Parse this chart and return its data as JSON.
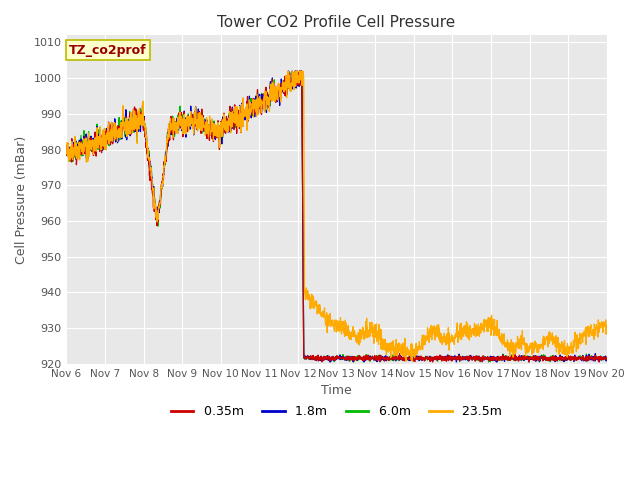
{
  "title": "Tower CO2 Profile Cell Pressure",
  "xlabel": "Time",
  "ylabel": "Cell Pressure (mBar)",
  "ylim": [
    920,
    1012
  ],
  "yticks": [
    920,
    930,
    940,
    950,
    960,
    970,
    980,
    990,
    1000,
    1010
  ],
  "annotation_text": "TZ_co2prof",
  "annotation_box_color": "#ffffcc",
  "annotation_box_edgecolor": "#bbbb00",
  "annotation_text_color": "#990000",
  "fig_bg_color": "#ffffff",
  "plot_bg_color": "#e8e8e8",
  "line_colors": {
    "0.35m": "#cc0000",
    "1.8m": "#0000cc",
    "6.0m": "#00bb00",
    "23.5m": "#ffaa00"
  },
  "x_tick_labels": [
    "Nov 6",
    "Nov 7",
    "Nov 8",
    "Nov 9",
    "Nov 10",
    "Nov 11",
    "Nov 12",
    "Nov 13",
    "Nov 14",
    "Nov 15",
    "Nov 16",
    "Nov 17",
    "Nov 18",
    "Nov 19",
    "Nov 20"
  ]
}
